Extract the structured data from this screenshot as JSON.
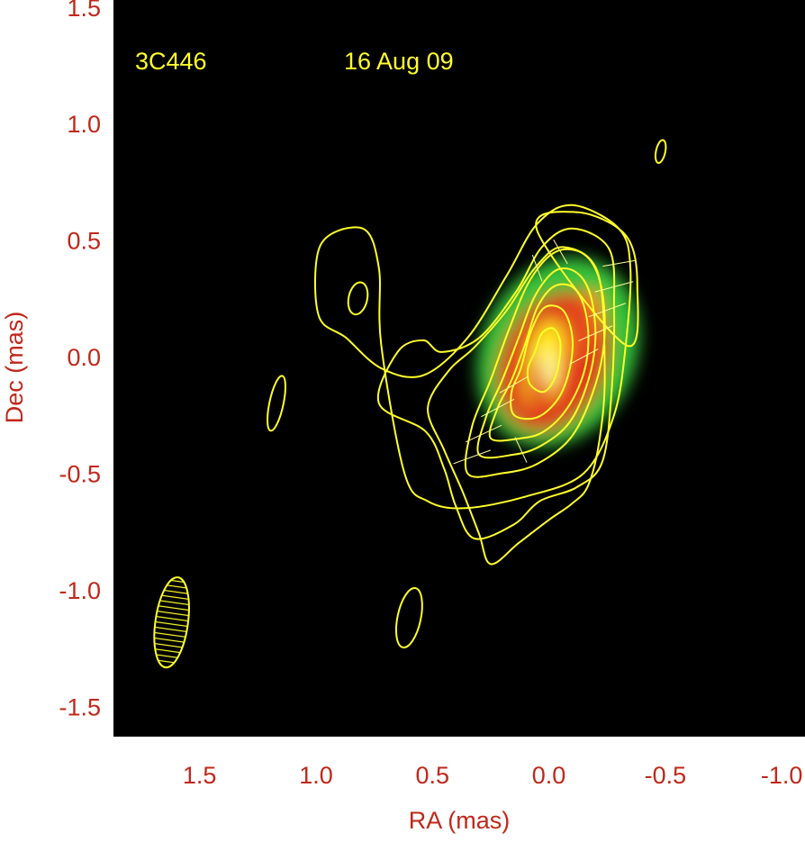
{
  "chart_data": {
    "type": "heatmap",
    "title": "",
    "source_label": "3C446",
    "date_label": "16 Aug 09",
    "xlabel": "RA (mas)",
    "ylabel": "Dec (mas)",
    "xlim": [
      1.87,
      -1.1
    ],
    "ylim": [
      -1.63,
      1.53
    ],
    "x_reversed": true,
    "grid": false,
    "background": "#000000",
    "xticks": [
      1.5,
      1.0,
      0.5,
      0.0,
      -0.5,
      -1.0
    ],
    "xtick_labels": [
      "1.5",
      "1.0",
      "0.5",
      "0.0",
      "-0.5",
      "-1.0"
    ],
    "yticks": [
      1.5,
      1.0,
      0.5,
      0.0,
      -0.5,
      -1.0,
      -1.5
    ],
    "ytick_labels": [
      "1.5",
      "1.0",
      "0.5",
      "0.0",
      "-0.5",
      "-1.0",
      "-1.5"
    ],
    "colors": {
      "axis_text": "#c0281b",
      "contour": "#ffff2a",
      "overlay_text": "#ffff2a",
      "polarization_ticks": "#ffff99",
      "frame": "#000000"
    },
    "colormap": [
      "#1a2bd8",
      "#1c9a6a",
      "#39c23a",
      "#b8d832",
      "#e03a1e",
      "#ff9a1e",
      "#ffe81e",
      "#ffffa0"
    ],
    "core": {
      "ra": 0.0,
      "dec": -0.05
    },
    "intensity_blobs": [
      {
        "ra": -0.04,
        "dec": 0.02,
        "sx": 0.33,
        "sy": 0.42,
        "pa_deg": 25,
        "level": 0.28
      },
      {
        "ra": -0.02,
        "dec": -0.02,
        "sx": 0.22,
        "sy": 0.31,
        "pa_deg": 25,
        "level": 0.58
      },
      {
        "ra": -0.15,
        "dec": 0.15,
        "sx": 0.07,
        "sy": 0.14,
        "pa_deg": 15,
        "level": 0.72
      },
      {
        "ra": 0.02,
        "dec": -0.04,
        "sx": 0.08,
        "sy": 0.2,
        "pa_deg": 10,
        "level": 0.82
      },
      {
        "ra": 0.01,
        "dec": -0.05,
        "sx": 0.03,
        "sy": 0.06,
        "pa_deg": 0,
        "level": 0.98
      }
    ],
    "contours": [
      [
        [
          0.35,
          -0.5
        ],
        [
          0.2,
          -0.5
        ],
        [
          0.05,
          -0.46
        ],
        [
          -0.1,
          -0.34
        ],
        [
          -0.2,
          -0.12
        ],
        [
          -0.24,
          0.1
        ],
        [
          -0.22,
          0.32
        ],
        [
          -0.15,
          0.44
        ],
        [
          -0.03,
          0.45
        ],
        [
          0.08,
          0.33
        ],
        [
          0.17,
          0.12
        ],
        [
          0.25,
          -0.1
        ],
        [
          0.33,
          -0.3
        ]
      ],
      [
        [
          0.3,
          -0.42
        ],
        [
          0.15,
          -0.42
        ],
        [
          0.03,
          -0.38
        ],
        [
          -0.09,
          -0.28
        ],
        [
          -0.17,
          -0.1
        ],
        [
          -0.2,
          0.08
        ],
        [
          -0.18,
          0.26
        ],
        [
          -0.12,
          0.36
        ],
        [
          -0.03,
          0.37
        ],
        [
          0.06,
          0.26
        ],
        [
          0.13,
          0.08
        ],
        [
          0.2,
          -0.1
        ],
        [
          0.27,
          -0.26
        ]
      ],
      [
        [
          0.25,
          -0.35
        ],
        [
          0.12,
          -0.35
        ],
        [
          0.02,
          -0.32
        ],
        [
          -0.08,
          -0.22
        ],
        [
          -0.15,
          -0.07
        ],
        [
          -0.17,
          0.08
        ],
        [
          -0.15,
          0.22
        ],
        [
          -0.1,
          0.3
        ],
        [
          -0.02,
          0.3
        ],
        [
          0.05,
          0.21
        ],
        [
          0.1,
          0.06
        ],
        [
          0.16,
          -0.1
        ],
        [
          0.22,
          -0.22
        ]
      ],
      [
        [
          0.15,
          -0.25
        ],
        [
          0.05,
          -0.26
        ],
        [
          -0.04,
          -0.18
        ],
        [
          -0.09,
          -0.05
        ],
        [
          -0.1,
          0.09
        ],
        [
          -0.06,
          0.2
        ],
        [
          0.02,
          0.21
        ],
        [
          0.08,
          0.1
        ],
        [
          0.12,
          -0.05
        ],
        [
          0.16,
          -0.15
        ]
      ],
      [
        [
          0.08,
          -0.12
        ],
        [
          0.02,
          -0.15
        ],
        [
          -0.03,
          -0.08
        ],
        [
          -0.05,
          0.05
        ],
        [
          -0.02,
          0.12
        ],
        [
          0.03,
          0.1
        ],
        [
          0.06,
          0.02
        ],
        [
          0.09,
          -0.05
        ]
      ],
      [
        [
          0.36,
          -0.65
        ],
        [
          0.1,
          -0.6
        ],
        [
          -0.15,
          -0.5
        ],
        [
          -0.28,
          -0.25
        ],
        [
          -0.33,
          0.05
        ],
        [
          -0.35,
          0.38
        ],
        [
          -0.3,
          0.55
        ],
        [
          -0.1,
          0.65
        ],
        [
          0.05,
          0.57
        ],
        [
          0.18,
          0.35
        ],
        [
          0.35,
          0.08
        ],
        [
          0.54,
          -0.08
        ],
        [
          0.72,
          -0.05
        ],
        [
          0.87,
          0.08
        ],
        [
          0.99,
          0.18
        ],
        [
          0.98,
          0.48
        ],
        [
          0.8,
          0.55
        ],
        [
          0.73,
          0.38
        ],
        [
          0.72,
          0.05
        ],
        [
          0.62,
          -0.5
        ],
        [
          0.52,
          -0.62
        ]
      ],
      [
        [
          0.32,
          -0.78
        ],
        [
          0.15,
          -0.72
        ],
        [
          0.04,
          -0.62
        ],
        [
          -0.12,
          -0.56
        ],
        [
          -0.23,
          -0.45
        ],
        [
          -0.27,
          -0.14
        ],
        [
          -0.28,
          0.2
        ],
        [
          -0.26,
          0.46
        ],
        [
          -0.1,
          0.55
        ],
        [
          0.03,
          0.47
        ],
        [
          0.14,
          0.28
        ],
        [
          0.3,
          0.08
        ],
        [
          0.46,
          0.02
        ],
        [
          0.54,
          0.07
        ],
        [
          0.65,
          0.02
        ],
        [
          0.73,
          -0.2
        ],
        [
          0.53,
          -0.32
        ],
        [
          0.45,
          -0.48
        ],
        [
          0.4,
          -0.64
        ]
      ],
      [
        [
          0.25,
          -0.89
        ],
        [
          0.13,
          -0.8
        ],
        [
          0.0,
          -0.7
        ],
        [
          -0.1,
          -0.63
        ],
        [
          -0.17,
          -0.55
        ],
        [
          -0.22,
          -0.34
        ],
        [
          -0.24,
          -0.06
        ],
        [
          -0.21,
          0.36
        ],
        [
          -0.06,
          0.47
        ],
        [
          0.06,
          0.38
        ],
        [
          0.18,
          0.2
        ],
        [
          0.32,
          0.04
        ],
        [
          0.43,
          -0.06
        ],
        [
          0.52,
          -0.22
        ],
        [
          0.45,
          -0.4
        ],
        [
          0.37,
          -0.58
        ],
        [
          0.3,
          -0.76
        ]
      ],
      [
        [
          -0.33,
          0.05
        ],
        [
          -0.38,
          0.3
        ],
        [
          -0.33,
          0.52
        ],
        [
          -0.12,
          0.62
        ],
        [
          0.05,
          0.54
        ]
      ]
    ],
    "isolated_contours": [
      {
        "ra": 0.6,
        "dec": -1.12,
        "rx": 0.05,
        "ry": 0.13
      },
      {
        "ra": 1.17,
        "dec": -0.2,
        "rx": 0.03,
        "ry": 0.12
      },
      {
        "ra": 0.82,
        "dec": 0.25,
        "rx": 0.04,
        "ry": 0.07
      },
      {
        "ra": -0.48,
        "dec": 0.88,
        "rx": 0.02,
        "ry": 0.05
      }
    ],
    "polarization_vectors": [
      {
        "ra": 0.33,
        "dec": -0.43,
        "len": 0.17,
        "angle_deg": 20
      },
      {
        "ra": 0.28,
        "dec": -0.33,
        "len": 0.17,
        "angle_deg": 25
      },
      {
        "ra": 0.22,
        "dec": -0.22,
        "len": 0.16,
        "angle_deg": 28
      },
      {
        "ra": 0.15,
        "dec": -0.12,
        "len": 0.14,
        "angle_deg": 30
      },
      {
        "ra": -0.15,
        "dec": 0.0,
        "len": 0.14,
        "angle_deg": 28
      },
      {
        "ra": -0.2,
        "dec": 0.1,
        "len": 0.16,
        "angle_deg": 24
      },
      {
        "ra": -0.25,
        "dec": 0.2,
        "len": 0.17,
        "angle_deg": 20
      },
      {
        "ra": -0.28,
        "dec": 0.3,
        "len": 0.17,
        "angle_deg": 15
      },
      {
        "ra": -0.3,
        "dec": 0.4,
        "len": 0.14,
        "angle_deg": 10
      },
      {
        "ra": -0.05,
        "dec": 0.45,
        "len": 0.12,
        "angle_deg": -60
      },
      {
        "ra": 0.05,
        "dec": 0.38,
        "len": 0.12,
        "angle_deg": -70
      },
      {
        "ra": 0.12,
        "dec": -0.4,
        "len": 0.12,
        "angle_deg": -65
      }
    ],
    "beam": {
      "ra": 1.62,
      "dec": -1.14,
      "major": 0.39,
      "minor": 0.14,
      "pa_deg": 8
    }
  }
}
